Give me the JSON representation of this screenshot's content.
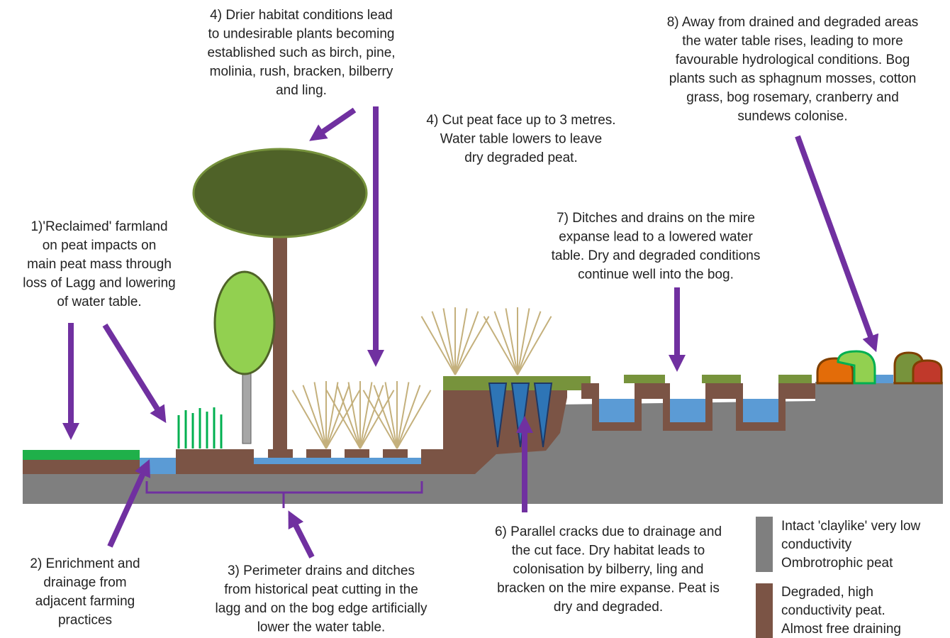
{
  "annotations": [
    {
      "lines": [
        "1)'Reclaimed' farmland",
        "on peat impacts on",
        "main peat mass through",
        "loss of Lagg and lowering",
        "of water table."
      ]
    },
    {
      "lines": [
        "2) Enrichment and",
        "drainage from",
        "adjacent farming",
        "practices"
      ]
    },
    {
      "lines": [
        "3) Perimeter drains and ditches",
        "from historical peat cutting in the",
        "lagg and on the bog edge artificially",
        "lower the water table."
      ]
    },
    {
      "lines": [
        "4) Drier habitat conditions lead",
        "to undesirable plants becoming",
        "established such as birch, pine,",
        "molinia, rush, bracken, bilberry",
        "and ling."
      ]
    },
    {
      "lines": [
        "4) Cut peat face up to 3 metres.",
        "Water table lowers to leave",
        "dry degraded peat."
      ]
    },
    {
      "lines": [
        "6) Parallel cracks due to drainage and",
        "the cut face. Dry habitat leads to",
        "colonisation by bilberry, ling and",
        "bracken on the mire expanse. Peat is",
        "dry and degraded."
      ]
    },
    {
      "lines": [
        "7) Ditches and drains on the mire",
        "expanse lead to a lowered water",
        "table. Dry and degraded conditions",
        "continue well into the bog."
      ]
    },
    {
      "lines": [
        "8) Away from drained and degraded areas",
        "the water table rises, leading to more",
        "favourable hydrological conditions. Bog",
        "plants such as sphagnum mosses, cotton",
        "grass, bog rosemary, cranberry and",
        "sundews colonise."
      ]
    }
  ],
  "legend": [
    {
      "lines": [
        "Intact 'claylike' very low",
        "conductivity",
        "Ombrotrophic peat"
      ]
    },
    {
      "lines": [
        "Degraded, high",
        "conductivity peat.",
        "Almost free draining"
      ]
    }
  ]
}
